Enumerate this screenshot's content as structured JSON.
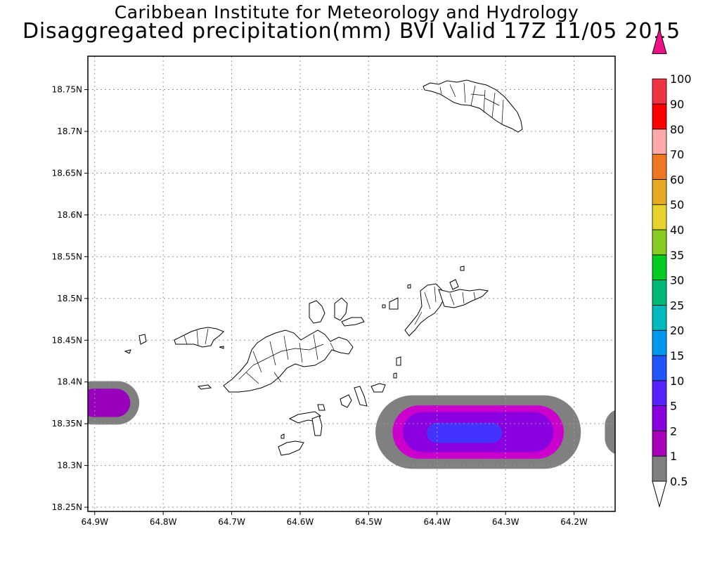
{
  "title_line1": "Caribbean Institute for Meteorology and Hydrology",
  "title_line2": "Disaggregated precipitation(mm) BVI Valid 17Z 11/05 2015",
  "map": {
    "lon_range": [
      -64.91,
      -64.14
    ],
    "lat_range": [
      18.245,
      18.79
    ],
    "lon_ticks": [
      {
        "value": -64.9,
        "label": "64.9W"
      },
      {
        "value": -64.8,
        "label": "64.8W"
      },
      {
        "value": -64.7,
        "label": "64.7W"
      },
      {
        "value": -64.6,
        "label": "64.6W"
      },
      {
        "value": -64.5,
        "label": "64.5W"
      },
      {
        "value": -64.4,
        "label": "64.4W"
      },
      {
        "value": -64.3,
        "label": "64.3W"
      },
      {
        "value": -64.2,
        "label": "64.2W"
      }
    ],
    "lat_ticks": [
      {
        "value": 18.25,
        "label": "18.25N"
      },
      {
        "value": 18.3,
        "label": "18.3N"
      },
      {
        "value": 18.35,
        "label": "18.35N"
      },
      {
        "value": 18.4,
        "label": "18.4N"
      },
      {
        "value": 18.45,
        "label": "18.45N"
      },
      {
        "value": 18.5,
        "label": "18.5N"
      },
      {
        "value": 18.55,
        "label": "18.55N"
      },
      {
        "value": 18.6,
        "label": "18.6N"
      },
      {
        "value": 18.65,
        "label": "18.65N"
      },
      {
        "value": 18.7,
        "label": "18.7N"
      },
      {
        "value": 18.75,
        "label": "18.75N"
      }
    ],
    "grid": true,
    "precip_areas": [
      {
        "center": [
          -64.885,
          18.375
        ],
        "half_width": [
          0.05,
          0.026
        ],
        "color": "#808080",
        "level": "0.5"
      },
      {
        "center": [
          -64.885,
          18.375
        ],
        "half_width": [
          0.037,
          0.017
        ],
        "color": "#9900bb",
        "level": "1"
      },
      {
        "center": [
          -64.34,
          18.34
        ],
        "half_width": [
          0.15,
          0.044
        ],
        "color": "#808080",
        "level": "0.5"
      },
      {
        "center": [
          -64.34,
          18.34
        ],
        "half_width": [
          0.125,
          0.032
        ],
        "color": "#cc00cc",
        "level": "1"
      },
      {
        "center": [
          -64.34,
          18.34
        ],
        "half_width": [
          0.11,
          0.024
        ],
        "color": "#8a00e0",
        "level": "2"
      },
      {
        "center": [
          -64.36,
          18.339
        ],
        "half_width": [
          0.055,
          0.012
        ],
        "color": "#4433ff",
        "level": "5"
      },
      {
        "center": [
          -64.13,
          18.34
        ],
        "half_width": [
          0.025,
          0.028
        ],
        "color": "#808080",
        "level": "0.5"
      }
    ]
  },
  "colorbar": {
    "levels": [
      {
        "label": "0.5",
        "color": "#ffffff"
      },
      {
        "label": "1",
        "color": "#808080"
      },
      {
        "label": "2",
        "color": "#aa00bb"
      },
      {
        "label": "5",
        "color": "#8800dd"
      },
      {
        "label": "10",
        "color": "#5522ff"
      },
      {
        "label": "15",
        "color": "#2255ff"
      },
      {
        "label": "20",
        "color": "#0099ee"
      },
      {
        "label": "25",
        "color": "#00bbbb"
      },
      {
        "label": "30",
        "color": "#00bb77"
      },
      {
        "label": "35",
        "color": "#00cc22"
      },
      {
        "label": "40",
        "color": "#88cc22"
      },
      {
        "label": "50",
        "color": "#e6d22a"
      },
      {
        "label": "60",
        "color": "#e6aa22"
      },
      {
        "label": "70",
        "color": "#ee7722"
      },
      {
        "label": "80",
        "color": "#ffaaaa"
      },
      {
        "label": "90",
        "color": "#ff0000"
      },
      {
        "label": "100",
        "color": "#ee3344"
      }
    ],
    "top_color": "#ee1188"
  }
}
